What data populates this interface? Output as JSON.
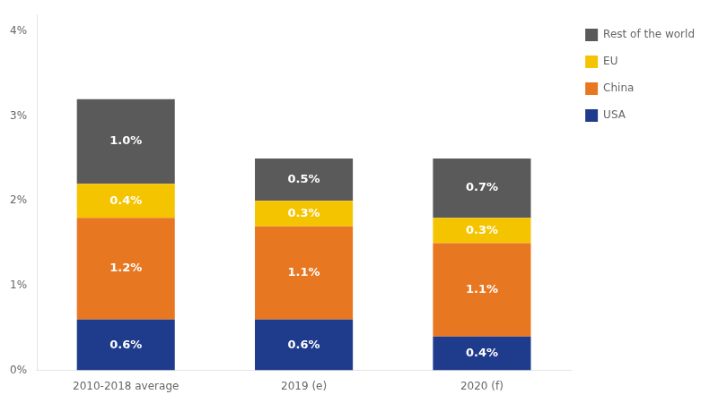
{
  "chart_data": {
    "type": "bar",
    "stacked": true,
    "categories": [
      "2010-2018 average",
      "2019 (e)",
      "2020 (f)"
    ],
    "series": [
      {
        "name": "USA",
        "color": "#1f3b8c",
        "values": [
          0.6,
          0.6,
          0.4
        ],
        "value_labels": [
          "0.6%",
          "0.6%",
          "0.4%"
        ]
      },
      {
        "name": "China",
        "color": "#e87722",
        "values": [
          1.2,
          1.1,
          1.1
        ],
        "value_labels": [
          "1.2%",
          "1.1%",
          "1.1%"
        ]
      },
      {
        "name": "EU",
        "color": "#f5c400",
        "values": [
          0.4,
          0.3,
          0.3
        ],
        "value_labels": [
          "0.4%",
          "0.3%",
          "0.3%"
        ]
      },
      {
        "name": "Rest of the world",
        "color": "#5a5a5a",
        "values": [
          1.0,
          0.5,
          0.7
        ],
        "value_labels": [
          "1.0%",
          "0.5%",
          "0.7%"
        ]
      }
    ],
    "ylim": [
      0,
      4.2
    ],
    "yticks": [
      {
        "value": 0,
        "label": "0%"
      },
      {
        "value": 1,
        "label": "1%"
      },
      {
        "value": 2,
        "label": "2%"
      },
      {
        "value": 3,
        "label": "3%"
      },
      {
        "value": 4,
        "label": "4%"
      }
    ],
    "grid": false,
    "legend": "right",
    "data_labels": true
  }
}
